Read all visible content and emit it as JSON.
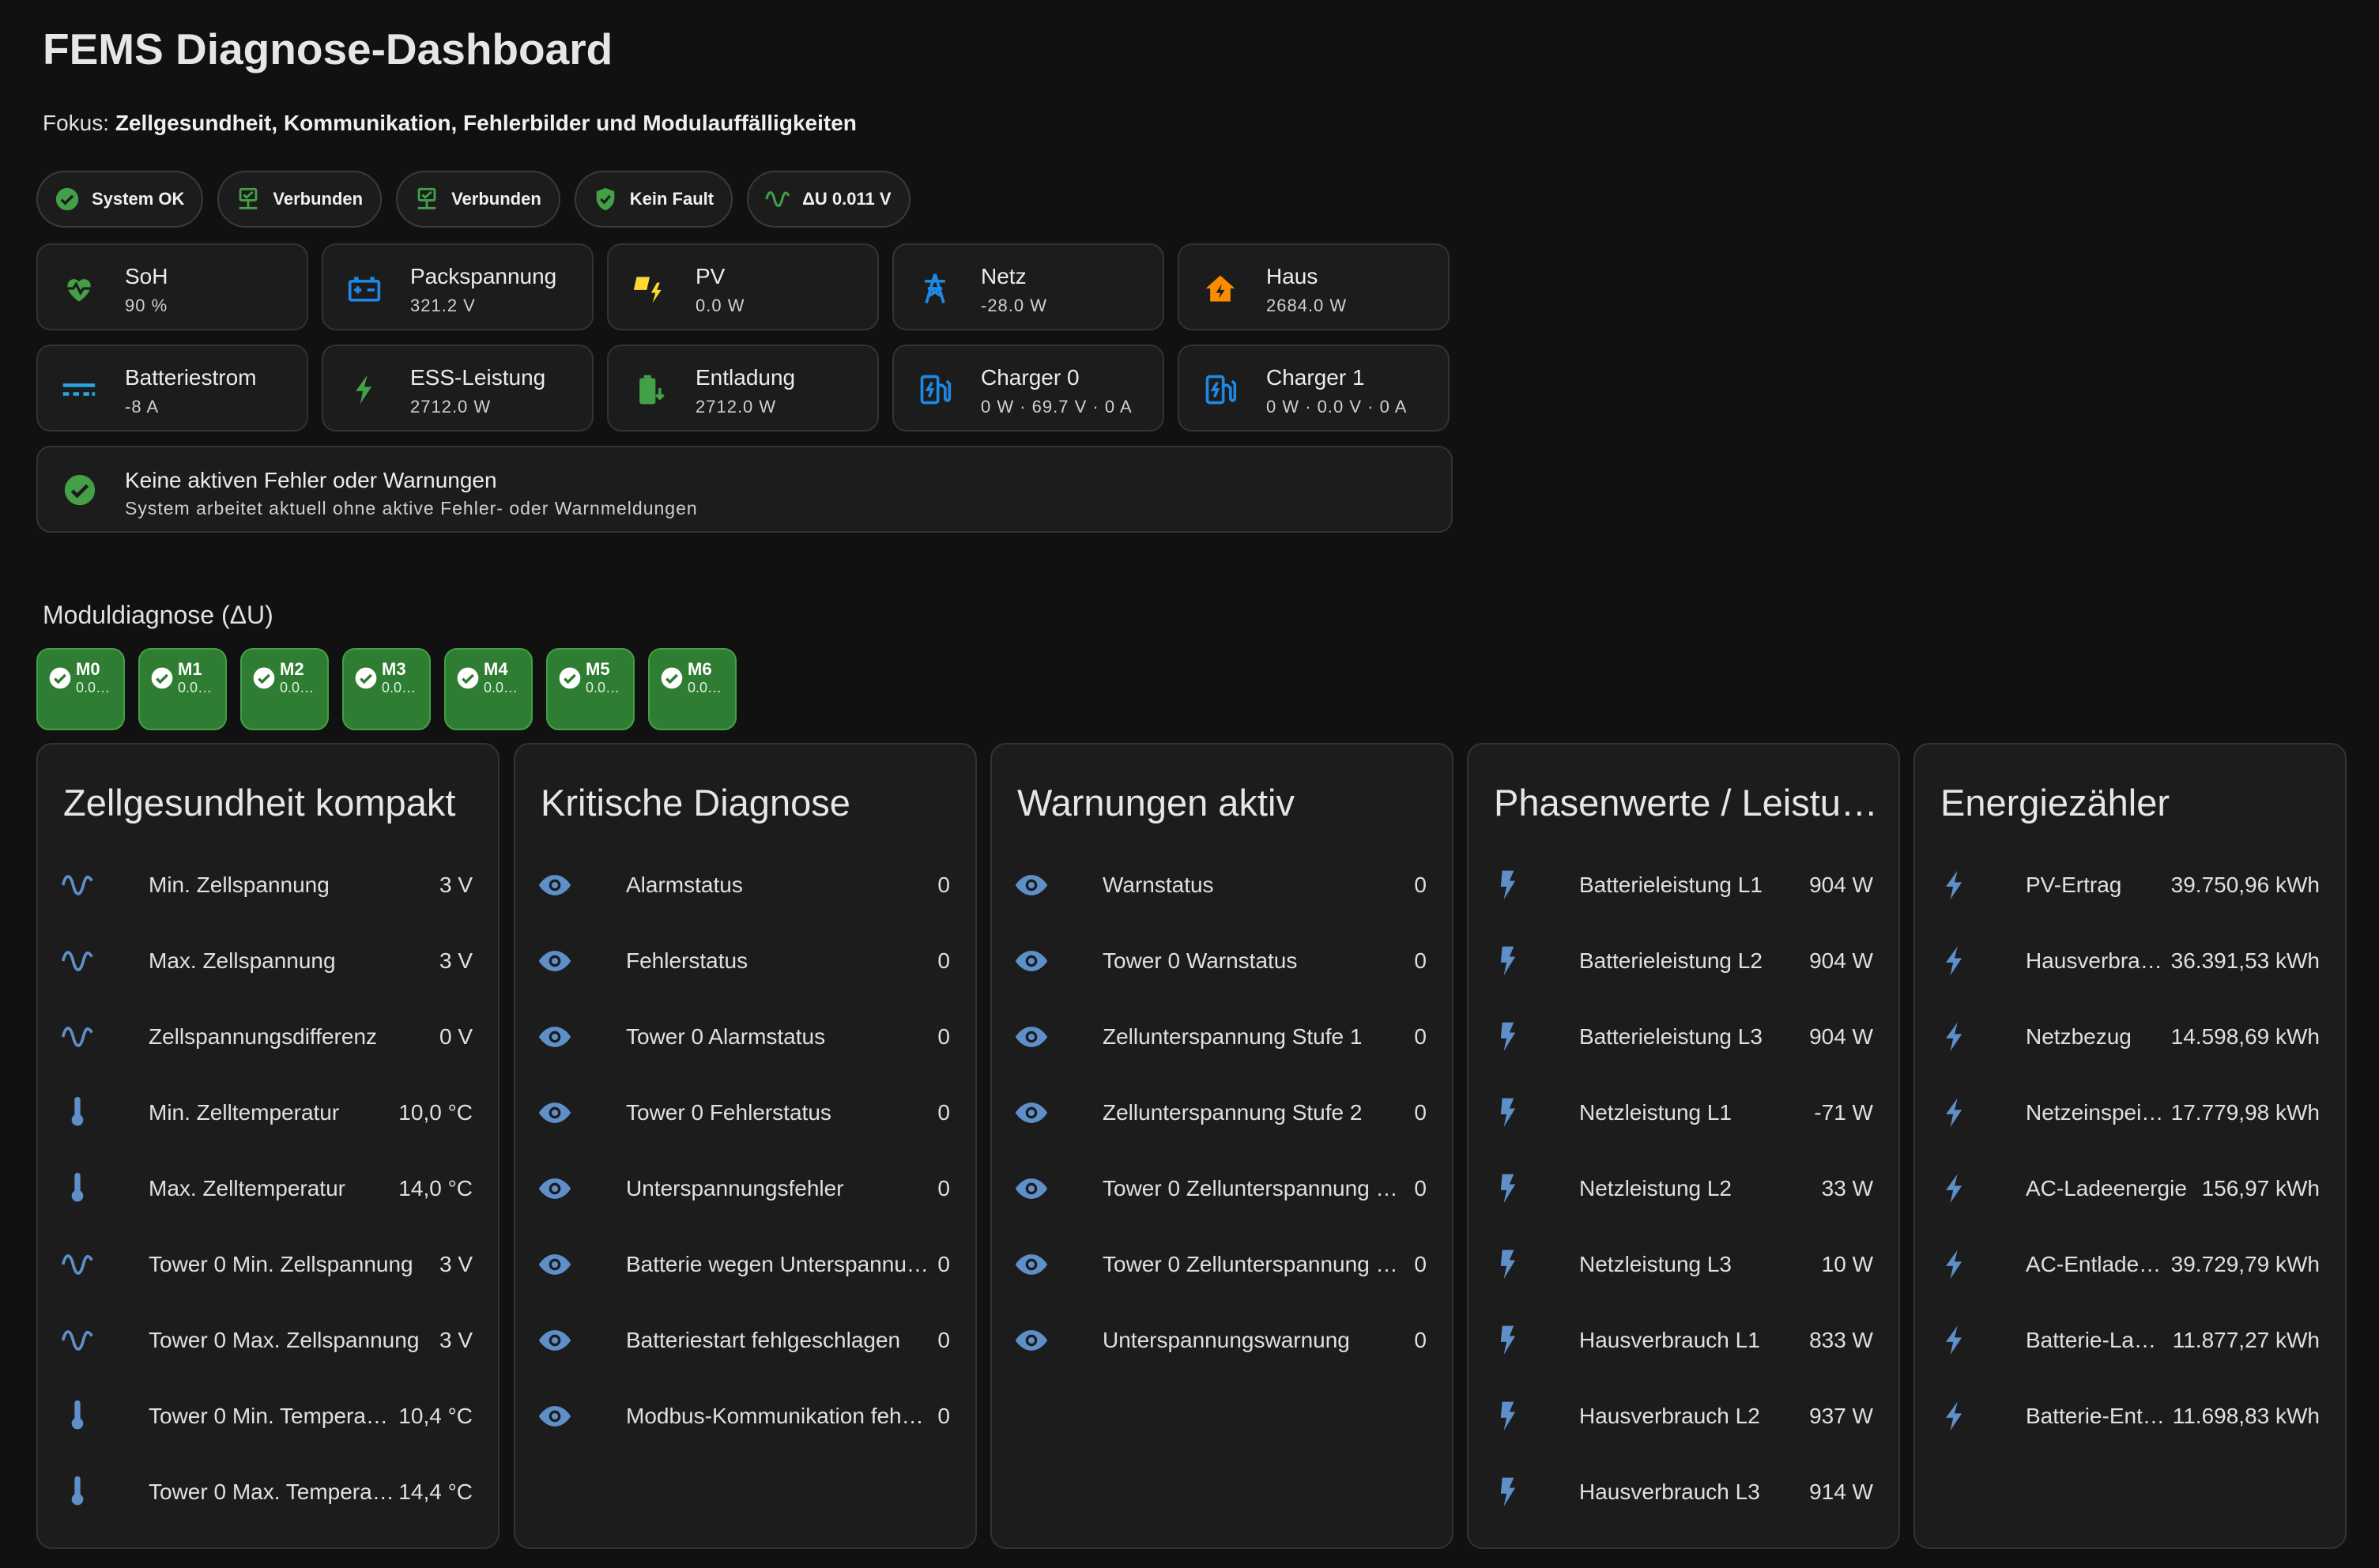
{
  "page": {
    "title": "FEMS Diagnose-Dashboard",
    "focus_prefix": "Fokus: ",
    "focus_text": "Zellgesundheit, Kommunikation, Fehlerbilder und Modulauffälligkeiten"
  },
  "chips": [
    {
      "label": "System OK",
      "icon": "check-circle-icon"
    },
    {
      "label": "Verbunden",
      "icon": "network-icon"
    },
    {
      "label": "Verbunden",
      "icon": "network-icon"
    },
    {
      "label": "Kein Fault",
      "icon": "shield-check-icon"
    },
    {
      "label": "ΔU 0.011 V",
      "icon": "sine-wave-icon"
    }
  ],
  "tiles": [
    {
      "name": "SoH",
      "value": "90 %",
      "icon": "heart-pulse-icon",
      "color": "#43a047"
    },
    {
      "name": "Packspannung",
      "value": "321.2 V",
      "icon": "battery-charge-icon",
      "color": "#1e88e5"
    },
    {
      "name": "PV",
      "value": "0.0 W",
      "icon": "solar-power-icon",
      "color": "#fdd835"
    },
    {
      "name": "Netz",
      "value": "-28.0 W",
      "icon": "transmission-tower-icon",
      "color": "#1e88e5"
    },
    {
      "name": "Haus",
      "value": "2684.0 W",
      "icon": "home-lightning-icon",
      "color": "#fb8c00"
    },
    {
      "name": "Batteriestrom",
      "value": "-8 A",
      "icon": "current-dc-icon",
      "color": "#26a6e0"
    },
    {
      "name": "ESS-Leistung",
      "value": "2712.0 W",
      "icon": "lightning-bolt-icon",
      "color": "#43a047"
    },
    {
      "name": "Entladung",
      "value": "2712.0 W",
      "icon": "battery-discharge-icon",
      "color": "#43a047"
    },
    {
      "name": "Charger 0",
      "value": "0 W · 69.7 V · 0 A",
      "icon": "ev-station-icon",
      "color": "#1e88e5"
    },
    {
      "name": "Charger 1",
      "value": "0 W · 0.0 V · 0 A",
      "icon": "ev-station-icon",
      "color": "#1e88e5"
    }
  ],
  "banner": {
    "title": "Keine aktiven Fehler oder Warnungen",
    "subtitle": "System arbeitet aktuell ohne aktive Fehler- oder Warnmeldungen"
  },
  "modules_heading": "Moduldiagnose (ΔU)",
  "modules": [
    {
      "name": "M0",
      "value": "0.0…"
    },
    {
      "name": "M1",
      "value": "0.0…"
    },
    {
      "name": "M2",
      "value": "0.0…"
    },
    {
      "name": "M3",
      "value": "0.0…"
    },
    {
      "name": "M4",
      "value": "0.0…"
    },
    {
      "name": "M5",
      "value": "0.0…"
    },
    {
      "name": "M6",
      "value": "0.0…"
    }
  ],
  "cards": [
    {
      "title": "Zellgesundheit kompakt",
      "rows": [
        {
          "icon": "sine-wave-icon",
          "label": "Min. Zellspannung",
          "value": "3 V"
        },
        {
          "icon": "sine-wave-icon",
          "label": "Max. Zellspannung",
          "value": "3 V"
        },
        {
          "icon": "sine-wave-icon",
          "label": "Zellspannungsdifferenz",
          "value": "0 V"
        },
        {
          "icon": "thermometer-icon",
          "label": "Min. Zelltemperatur",
          "value": "10,0 °C"
        },
        {
          "icon": "thermometer-icon",
          "label": "Max. Zelltemperatur",
          "value": "14,0 °C"
        },
        {
          "icon": "sine-wave-icon",
          "label": "Tower 0 Min. Zellspannung",
          "value": "3 V"
        },
        {
          "icon": "sine-wave-icon",
          "label": "Tower 0 Max. Zellspannung",
          "value": "3 V"
        },
        {
          "icon": "thermometer-icon",
          "label": "Tower 0 Min. Tempera…",
          "value": "10,4 °C"
        },
        {
          "icon": "thermometer-icon",
          "label": "Tower 0 Max. Tempera…",
          "value": "14,4 °C"
        }
      ]
    },
    {
      "title": "Kritische Diagnose",
      "rows": [
        {
          "icon": "eye-icon",
          "label": "Alarmstatus",
          "value": "0"
        },
        {
          "icon": "eye-icon",
          "label": "Fehlerstatus",
          "value": "0"
        },
        {
          "icon": "eye-icon",
          "label": "Tower 0 Alarmstatus",
          "value": "0"
        },
        {
          "icon": "eye-icon",
          "label": "Tower 0 Fehlerstatus",
          "value": "0"
        },
        {
          "icon": "eye-icon",
          "label": "Unterspannungsfehler",
          "value": "0"
        },
        {
          "icon": "eye-icon",
          "label": "Batterie wegen Unterspannu…",
          "value": "0"
        },
        {
          "icon": "eye-icon",
          "label": "Batteriestart fehlgeschlagen",
          "value": "0"
        },
        {
          "icon": "eye-icon",
          "label": "Modbus-Kommunikation feh…",
          "value": "0"
        }
      ]
    },
    {
      "title": "Warnungen aktiv",
      "rows": [
        {
          "icon": "eye-icon",
          "label": "Warnstatus",
          "value": "0"
        },
        {
          "icon": "eye-icon",
          "label": "Tower 0 Warnstatus",
          "value": "0"
        },
        {
          "icon": "eye-icon",
          "label": "Zellunterspannung Stufe 1",
          "value": "0"
        },
        {
          "icon": "eye-icon",
          "label": "Zellunterspannung Stufe 2",
          "value": "0"
        },
        {
          "icon": "eye-icon",
          "label": "Tower 0 Zellunterspannung …",
          "value": "0"
        },
        {
          "icon": "eye-icon",
          "label": "Tower 0 Zellunterspannung …",
          "value": "0"
        },
        {
          "icon": "eye-icon",
          "label": "Unterspannungswarnung",
          "value": "0"
        }
      ]
    },
    {
      "title": "Phasenwerte / Leistu…",
      "rows": [
        {
          "icon": "flash-icon",
          "label": "Batterieleistung L1",
          "value": "904 W"
        },
        {
          "icon": "flash-icon",
          "label": "Batterieleistung L2",
          "value": "904 W"
        },
        {
          "icon": "flash-icon",
          "label": "Batterieleistung L3",
          "value": "904 W"
        },
        {
          "icon": "flash-icon",
          "label": "Netzleistung L1",
          "value": "-71 W"
        },
        {
          "icon": "flash-icon",
          "label": "Netzleistung L2",
          "value": "33 W"
        },
        {
          "icon": "flash-icon",
          "label": "Netzleistung L3",
          "value": "10 W"
        },
        {
          "icon": "flash-icon",
          "label": "Hausverbrauch L1",
          "value": "833 W"
        },
        {
          "icon": "flash-icon",
          "label": "Hausverbrauch L2",
          "value": "937 W"
        },
        {
          "icon": "flash-icon",
          "label": "Hausverbrauch L3",
          "value": "914 W"
        }
      ]
    },
    {
      "title": "Energiezähler",
      "rows": [
        {
          "icon": "lightning-bolt-icon",
          "label": "PV-Ertrag",
          "value": "39.750,96 kWh"
        },
        {
          "icon": "lightning-bolt-icon",
          "label": "Hausverbra…",
          "value": "36.391,53 kWh"
        },
        {
          "icon": "lightning-bolt-icon",
          "label": "Netzbezug",
          "value": "14.598,69 kWh"
        },
        {
          "icon": "lightning-bolt-icon",
          "label": "Netzeinspei…",
          "value": "17.779,98 kWh"
        },
        {
          "icon": "lightning-bolt-icon",
          "label": "AC-Ladeenergie",
          "value": "156,97 kWh"
        },
        {
          "icon": "lightning-bolt-icon",
          "label": "AC-Entlade…",
          "value": "39.729,79 kWh"
        },
        {
          "icon": "lightning-bolt-icon",
          "label": "Batterie-La…",
          "value": "11.877,27 kWh"
        },
        {
          "icon": "lightning-bolt-icon",
          "label": "Batterie-Ent…",
          "value": "11.698,83 kWh"
        }
      ]
    }
  ],
  "colors": {
    "ok_green": "#43a047",
    "module_green": "#2e7d32",
    "row_icon_blue": "#5e8fc9",
    "background": "#111111",
    "card": "#1c1c1c"
  }
}
